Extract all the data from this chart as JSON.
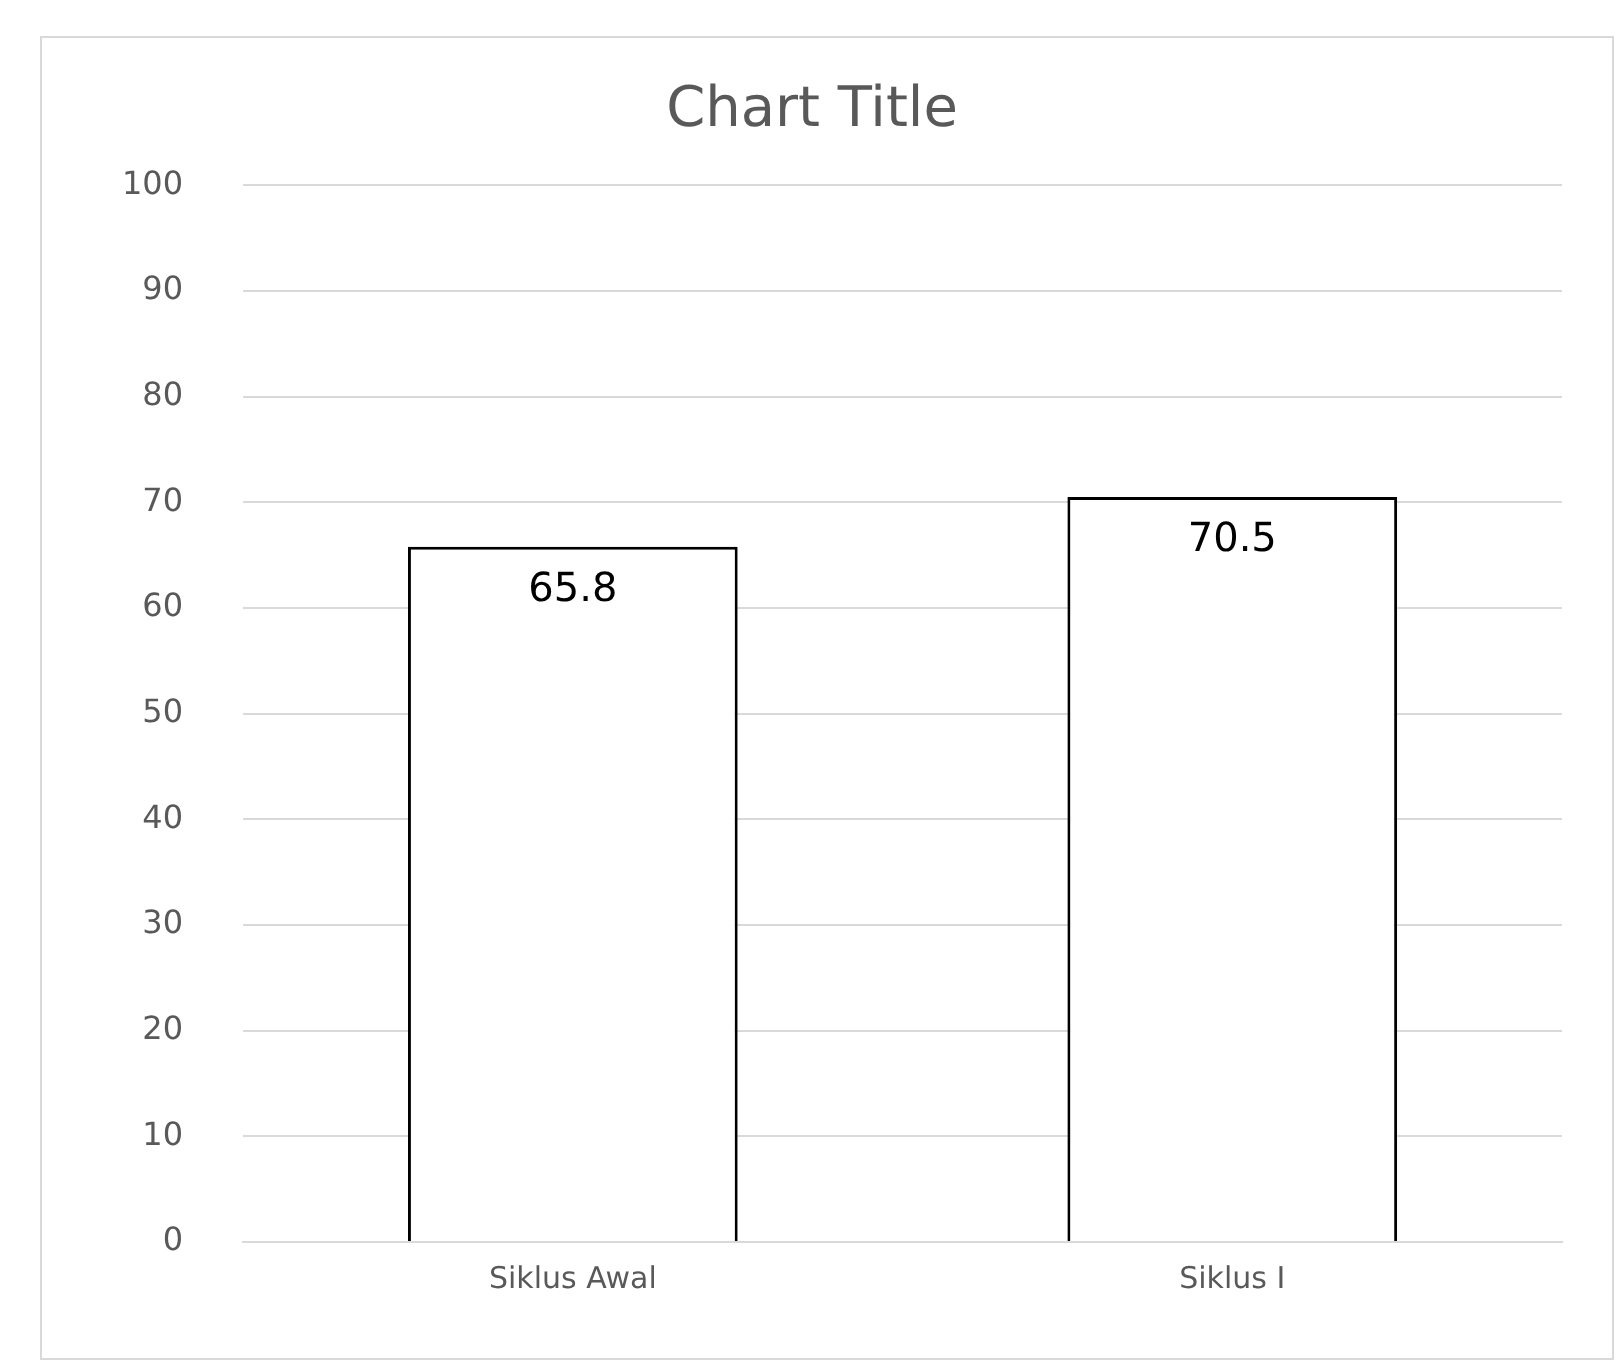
{
  "chart_data": {
    "type": "bar",
    "title": "Chart Title",
    "categories": [
      "Siklus Awal",
      "Siklus I"
    ],
    "values": [
      65.8,
      70.5
    ],
    "color": "#ffffff",
    "ylim": [
      0,
      100
    ],
    "yticks": [
      0,
      10,
      20,
      30,
      40,
      50,
      60,
      70,
      80,
      90,
      100
    ],
    "grid": "y",
    "data_labels": true
  }
}
